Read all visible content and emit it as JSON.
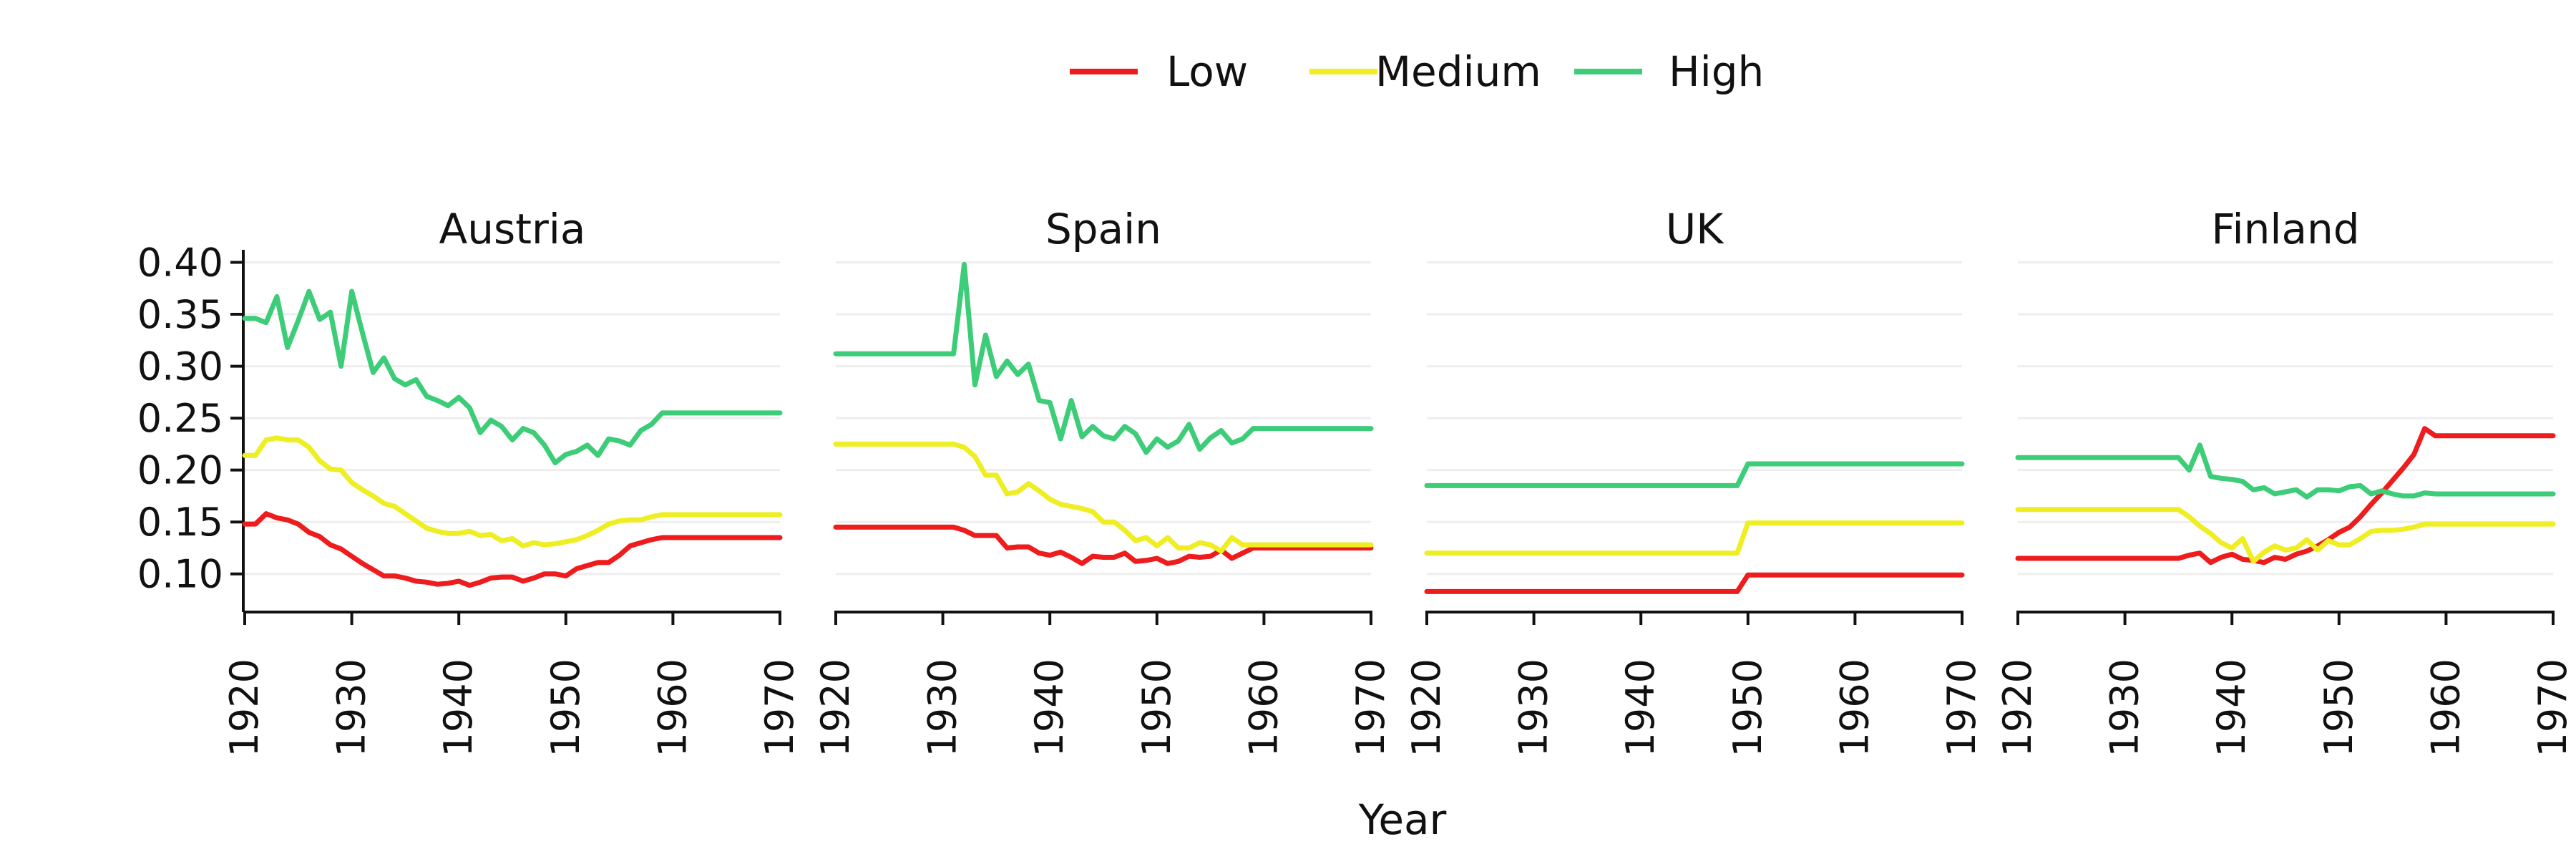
{
  "chart_data": {
    "type": "line",
    "xlabel": "Year",
    "ylabel": "",
    "xlim": [
      1920,
      1970
    ],
    "ylim": [
      0.075,
      0.41
    ],
    "x_ticks": [
      "1920",
      "1930",
      "1940",
      "1950",
      "1960",
      "1970"
    ],
    "y_ticks": [
      "0.10",
      "0.15",
      "0.20",
      "0.25",
      "0.30",
      "0.35",
      "0.40"
    ],
    "grid": "horizontal",
    "legend": {
      "position": "top-center",
      "entries": [
        {
          "label": "Low",
          "color": "#ee1c1c"
        },
        {
          "label": "Medium",
          "color": "#eeee22"
        },
        {
          "label": "High",
          "color": "#3dcc78"
        }
      ]
    },
    "panels": [
      {
        "title": "Austria",
        "series": [
          {
            "name": "Low",
            "x": [
              1920,
              1921,
              1922,
              1923,
              1924,
              1925,
              1926,
              1927,
              1928,
              1929,
              1930,
              1931,
              1932,
              1933,
              1934,
              1935,
              1936,
              1937,
              1938,
              1939,
              1940,
              1941,
              1942,
              1943,
              1944,
              1945,
              1946,
              1947,
              1948,
              1949,
              1950,
              1951,
              1952,
              1953,
              1954,
              1955,
              1956,
              1957,
              1958,
              1959,
              1960,
              1970
            ],
            "y": [
              0.148,
              0.148,
              0.158,
              0.154,
              0.152,
              0.148,
              0.14,
              0.136,
              0.128,
              0.124,
              0.117,
              0.11,
              0.104,
              0.098,
              0.098,
              0.096,
              0.093,
              0.092,
              0.09,
              0.091,
              0.093,
              0.089,
              0.092,
              0.096,
              0.097,
              0.097,
              0.093,
              0.096,
              0.1,
              0.1,
              0.098,
              0.105,
              0.108,
              0.111,
              0.111,
              0.118,
              0.127,
              0.13,
              0.133,
              0.135,
              0.135,
              0.135
            ]
          },
          {
            "name": "Medium",
            "x": [
              1920,
              1921,
              1922,
              1923,
              1924,
              1925,
              1926,
              1927,
              1928,
              1929,
              1930,
              1931,
              1932,
              1933,
              1934,
              1935,
              1936,
              1937,
              1938,
              1939,
              1940,
              1941,
              1942,
              1943,
              1944,
              1945,
              1946,
              1947,
              1948,
              1949,
              1950,
              1951,
              1952,
              1953,
              1954,
              1955,
              1956,
              1957,
              1958,
              1959,
              1960,
              1970
            ],
            "y": [
              0.214,
              0.214,
              0.229,
              0.231,
              0.229,
              0.229,
              0.222,
              0.209,
              0.201,
              0.2,
              0.188,
              0.181,
              0.175,
              0.168,
              0.165,
              0.158,
              0.151,
              0.144,
              0.141,
              0.139,
              0.139,
              0.141,
              0.137,
              0.138,
              0.132,
              0.134,
              0.127,
              0.13,
              0.128,
              0.129,
              0.131,
              0.133,
              0.137,
              0.142,
              0.148,
              0.151,
              0.152,
              0.152,
              0.155,
              0.157,
              0.157,
              0.157
            ]
          },
          {
            "name": "High",
            "x": [
              1920,
              1921,
              1922,
              1923,
              1924,
              1925,
              1926,
              1927,
              1928,
              1929,
              1930,
              1931,
              1932,
              1933,
              1934,
              1935,
              1936,
              1937,
              1938,
              1939,
              1940,
              1941,
              1942,
              1943,
              1944,
              1945,
              1946,
              1947,
              1948,
              1949,
              1950,
              1951,
              1952,
              1953,
              1954,
              1955,
              1956,
              1957,
              1958,
              1959,
              1960,
              1970
            ],
            "y": [
              0.346,
              0.346,
              0.342,
              0.367,
              0.318,
              0.344,
              0.372,
              0.345,
              0.352,
              0.3,
              0.372,
              0.332,
              0.294,
              0.308,
              0.288,
              0.282,
              0.287,
              0.271,
              0.267,
              0.262,
              0.27,
              0.26,
              0.236,
              0.248,
              0.242,
              0.229,
              0.24,
              0.236,
              0.224,
              0.207,
              0.215,
              0.218,
              0.224,
              0.214,
              0.23,
              0.228,
              0.224,
              0.238,
              0.244,
              0.255,
              0.255,
              0.255
            ]
          }
        ]
      },
      {
        "title": "Spain",
        "series": [
          {
            "name": "Low",
            "x": [
              1920,
              1931,
              1932,
              1933,
              1934,
              1935,
              1936,
              1937,
              1938,
              1939,
              1940,
              1941,
              1942,
              1943,
              1944,
              1945,
              1946,
              1947,
              1948,
              1949,
              1950,
              1951,
              1952,
              1953,
              1954,
              1955,
              1956,
              1957,
              1958,
              1959,
              1970
            ],
            "y": [
              0.145,
              0.145,
              0.142,
              0.137,
              0.137,
              0.137,
              0.125,
              0.126,
              0.126,
              0.12,
              0.118,
              0.121,
              0.116,
              0.11,
              0.117,
              0.116,
              0.116,
              0.12,
              0.112,
              0.113,
              0.115,
              0.11,
              0.112,
              0.117,
              0.116,
              0.117,
              0.123,
              0.115,
              0.12,
              0.125,
              0.125
            ]
          },
          {
            "name": "Medium",
            "x": [
              1920,
              1931,
              1932,
              1933,
              1934,
              1935,
              1936,
              1937,
              1938,
              1939,
              1940,
              1941,
              1942,
              1943,
              1944,
              1945,
              1946,
              1947,
              1948,
              1949,
              1950,
              1951,
              1952,
              1953,
              1954,
              1955,
              1956,
              1957,
              1958,
              1959,
              1970
            ],
            "y": [
              0.225,
              0.225,
              0.222,
              0.213,
              0.195,
              0.195,
              0.177,
              0.179,
              0.187,
              0.18,
              0.172,
              0.167,
              0.165,
              0.163,
              0.16,
              0.15,
              0.15,
              0.142,
              0.132,
              0.135,
              0.127,
              0.135,
              0.125,
              0.125,
              0.13,
              0.128,
              0.122,
              0.135,
              0.128,
              0.128,
              0.128
            ]
          },
          {
            "name": "High",
            "x": [
              1920,
              1931,
              1932,
              1933,
              1934,
              1935,
              1936,
              1937,
              1938,
              1939,
              1940,
              1941,
              1942,
              1943,
              1944,
              1945,
              1946,
              1947,
              1948,
              1949,
              1950,
              1951,
              1952,
              1953,
              1954,
              1955,
              1956,
              1957,
              1958,
              1959,
              1970
            ],
            "y": [
              0.312,
              0.312,
              0.398,
              0.282,
              0.33,
              0.29,
              0.305,
              0.292,
              0.302,
              0.267,
              0.265,
              0.23,
              0.267,
              0.232,
              0.242,
              0.233,
              0.23,
              0.242,
              0.235,
              0.217,
              0.23,
              0.222,
              0.228,
              0.244,
              0.22,
              0.231,
              0.238,
              0.226,
              0.23,
              0.24,
              0.24
            ]
          }
        ]
      },
      {
        "title": "UK",
        "series": [
          {
            "name": "Low",
            "x": [
              1920,
              1949,
              1950,
              1970
            ],
            "y": [
              0.083,
              0.083,
              0.099,
              0.099
            ]
          },
          {
            "name": "Medium",
            "x": [
              1920,
              1949,
              1950,
              1970
            ],
            "y": [
              0.12,
              0.12,
              0.149,
              0.149
            ]
          },
          {
            "name": "High",
            "x": [
              1920,
              1949,
              1950,
              1970
            ],
            "y": [
              0.185,
              0.185,
              0.206,
              0.206
            ]
          }
        ]
      },
      {
        "title": "Finland",
        "series": [
          {
            "name": "Low",
            "x": [
              1920,
              1935,
              1936,
              1937,
              1938,
              1939,
              1940,
              1941,
              1942,
              1943,
              1944,
              1945,
              1946,
              1947,
              1948,
              1949,
              1950,
              1951,
              1952,
              1953,
              1954,
              1955,
              1956,
              1957,
              1958,
              1959,
              1970
            ],
            "y": [
              0.115,
              0.115,
              0.118,
              0.12,
              0.111,
              0.116,
              0.119,
              0.114,
              0.113,
              0.111,
              0.116,
              0.114,
              0.119,
              0.122,
              0.127,
              0.133,
              0.14,
              0.145,
              0.155,
              0.167,
              0.178,
              0.19,
              0.202,
              0.215,
              0.24,
              0.233,
              0.233
            ]
          },
          {
            "name": "Medium",
            "x": [
              1920,
              1935,
              1936,
              1937,
              1938,
              1939,
              1940,
              1941,
              1942,
              1943,
              1944,
              1945,
              1946,
              1947,
              1948,
              1949,
              1950,
              1951,
              1952,
              1953,
              1954,
              1955,
              1956,
              1957,
              1958,
              1959,
              1970
            ],
            "y": [
              0.162,
              0.162,
              0.155,
              0.146,
              0.139,
              0.13,
              0.125,
              0.134,
              0.112,
              0.121,
              0.127,
              0.123,
              0.125,
              0.133,
              0.123,
              0.132,
              0.128,
              0.128,
              0.134,
              0.141,
              0.142,
              0.142,
              0.143,
              0.145,
              0.148,
              0.148,
              0.148
            ]
          },
          {
            "name": "High",
            "x": [
              1920,
              1935,
              1936,
              1937,
              1938,
              1939,
              1940,
              1941,
              1942,
              1943,
              1944,
              1945,
              1946,
              1947,
              1948,
              1949,
              1950,
              1951,
              1952,
              1953,
              1954,
              1955,
              1956,
              1957,
              1958,
              1959,
              1970
            ],
            "y": [
              0.212,
              0.212,
              0.2,
              0.224,
              0.194,
              0.192,
              0.191,
              0.189,
              0.181,
              0.183,
              0.177,
              0.179,
              0.181,
              0.174,
              0.181,
              0.181,
              0.18,
              0.184,
              0.185,
              0.177,
              0.18,
              0.177,
              0.175,
              0.175,
              0.178,
              0.177,
              0.177
            ]
          }
        ]
      }
    ]
  }
}
